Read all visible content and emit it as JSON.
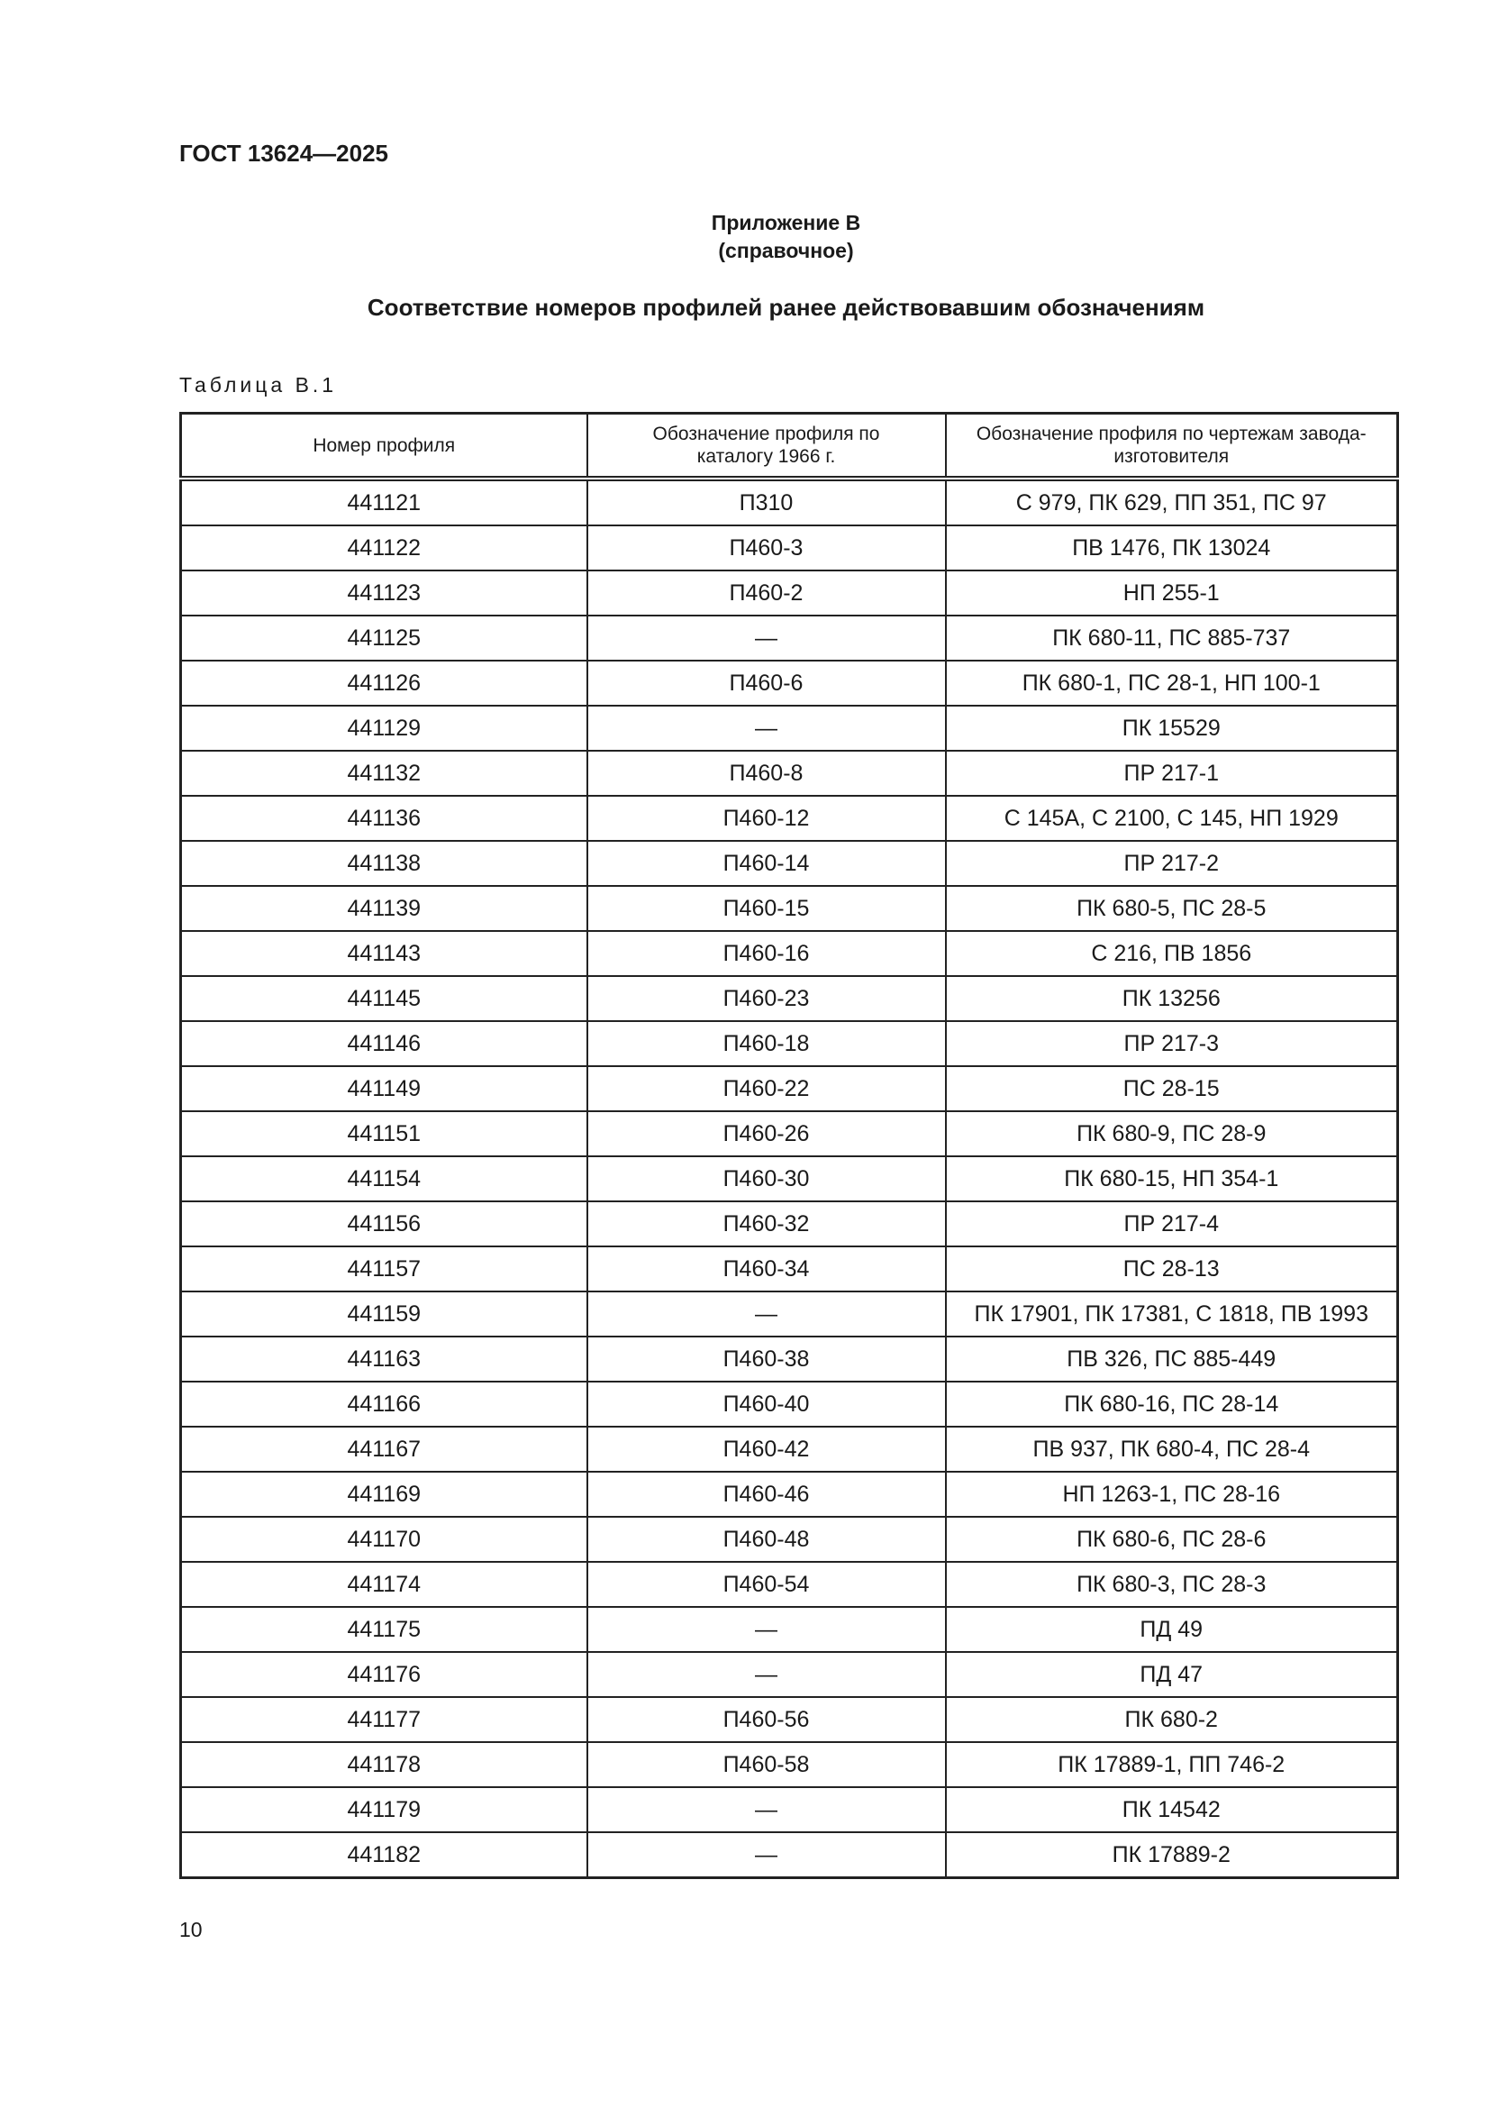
{
  "header": {
    "doc_code": "ГОСТ 13624—2025"
  },
  "appendix": {
    "title": "Приложение В",
    "subtitle": "(справочное)"
  },
  "section_title": "Соответствие номеров профилей ранее действовавшим обозначениям",
  "table": {
    "caption": "Таблица В.1",
    "columns": [
      "Номер профиля",
      "Обозначение профиля по каталогу 1966 г.",
      "Обозначение профиля по чертежам завода-изготовителя"
    ],
    "rows": [
      [
        "441121",
        "П310",
        "С 979, ПК 629, ПП 351, ПС 97"
      ],
      [
        "441122",
        "П460-3",
        "ПВ 1476, ПК 13024"
      ],
      [
        "441123",
        "П460-2",
        "НП 255-1"
      ],
      [
        "441125",
        "—",
        "ПК 680-11, ПС 885-737"
      ],
      [
        "441126",
        "П460-6",
        "ПК 680-1, ПС 28-1, НП 100-1"
      ],
      [
        "441129",
        "—",
        "ПК 15529"
      ],
      [
        "441132",
        "П460-8",
        "ПР 217-1"
      ],
      [
        "441136",
        "П460-12",
        "С 145А, С 2100, С 145, НП 1929"
      ],
      [
        "441138",
        "П460-14",
        "ПР 217-2"
      ],
      [
        "441139",
        "П460-15",
        "ПК 680-5, ПС 28-5"
      ],
      [
        "441143",
        "П460-16",
        "С 216, ПВ 1856"
      ],
      [
        "441145",
        "П460-23",
        "ПК 13256"
      ],
      [
        "441146",
        "П460-18",
        "ПР 217-3"
      ],
      [
        "441149",
        "П460-22",
        "ПС 28-15"
      ],
      [
        "441151",
        "П460-26",
        "ПК 680-9, ПС 28-9"
      ],
      [
        "441154",
        "П460-30",
        "ПК 680-15, НП 354-1"
      ],
      [
        "441156",
        "П460-32",
        "ПР 217-4"
      ],
      [
        "441157",
        "П460-34",
        "ПС 28-13"
      ],
      [
        "441159",
        "—",
        "ПК 17901, ПК 17381, С 1818, ПВ 1993"
      ],
      [
        "441163",
        "П460-38",
        "ПВ 326, ПС 885-449"
      ],
      [
        "441166",
        "П460-40",
        "ПК 680-16, ПС 28-14"
      ],
      [
        "441167",
        "П460-42",
        "ПВ 937, ПК 680-4, ПС 28-4"
      ],
      [
        "441169",
        "П460-46",
        "НП 1263-1, ПС 28-16"
      ],
      [
        "441170",
        "П460-48",
        "ПК 680-6, ПС 28-6"
      ],
      [
        "441174",
        "П460-54",
        "ПК 680-3, ПС 28-3"
      ],
      [
        "441175",
        "—",
        "ПД 49"
      ],
      [
        "441176",
        "—",
        "ПД 47"
      ],
      [
        "441177",
        "П460-56",
        "ПК 680-2"
      ],
      [
        "441178",
        "П460-58",
        "ПК 17889-1, ПП 746-2"
      ],
      [
        "441179",
        "—",
        "ПК 14542"
      ],
      [
        "441182",
        "—",
        "ПК 17889-2"
      ]
    ]
  },
  "footer": {
    "page_number": "10"
  }
}
